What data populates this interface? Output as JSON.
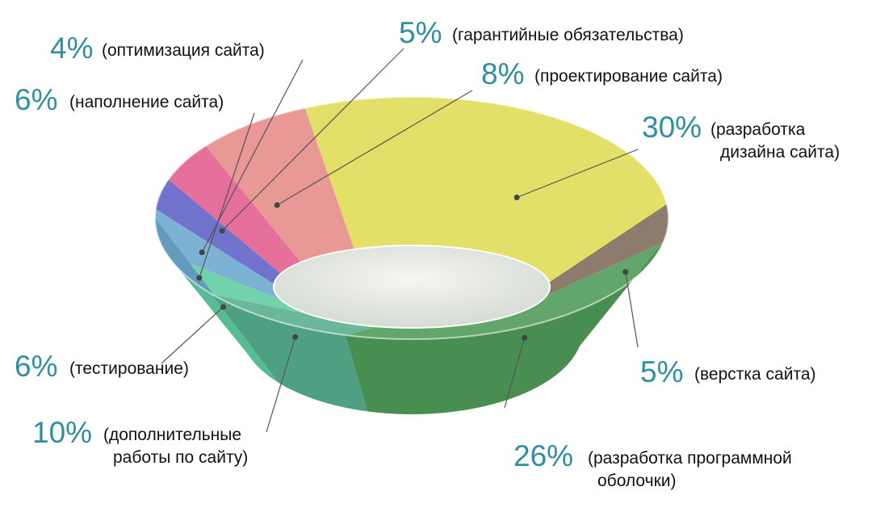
{
  "chart_data": {
    "type": "pie",
    "variant": "3d-bowl",
    "slices": [
      {
        "value": 26,
        "percent_label": "26%",
        "label_lines": [
          "(разработка программной",
          "оболочки)"
        ],
        "color": "#4e9a57"
      },
      {
        "value": 5,
        "percent_label": "5%",
        "label_lines": [
          "(верстка сайта)"
        ],
        "color": "#7d6a5a"
      },
      {
        "value": 30,
        "percent_label": "30%",
        "label_lines": [
          "(разработка",
          "дизайна сайта)"
        ],
        "color": "#dedc55"
      },
      {
        "value": 8,
        "percent_label": "8%",
        "label_lines": [
          "(проектирование сайта)"
        ],
        "color": "#e58a86"
      },
      {
        "value": 5,
        "percent_label": "5%",
        "label_lines": [
          "(гарантийные обязательства)"
        ],
        "color": "#e35c8e"
      },
      {
        "value": 4,
        "percent_label": "4%",
        "label_lines": [
          "(оптимизация сайта)"
        ],
        "color": "#5d5fc4"
      },
      {
        "value": 6,
        "percent_label": "6%",
        "label_lines": [
          "(наполнение сайта)"
        ],
        "color": "#6aa9cf"
      },
      {
        "value": 6,
        "percent_label": "6%",
        "label_lines": [
          "(тестирование)"
        ],
        "color": "#5fcca0"
      },
      {
        "value": 10,
        "percent_label": "10%",
        "label_lines": [
          "(дополнительные",
          "работы по сайту)"
        ],
        "color": "#56ad8d"
      }
    ],
    "percent_color": "#2f8f9f",
    "legend": "none"
  }
}
